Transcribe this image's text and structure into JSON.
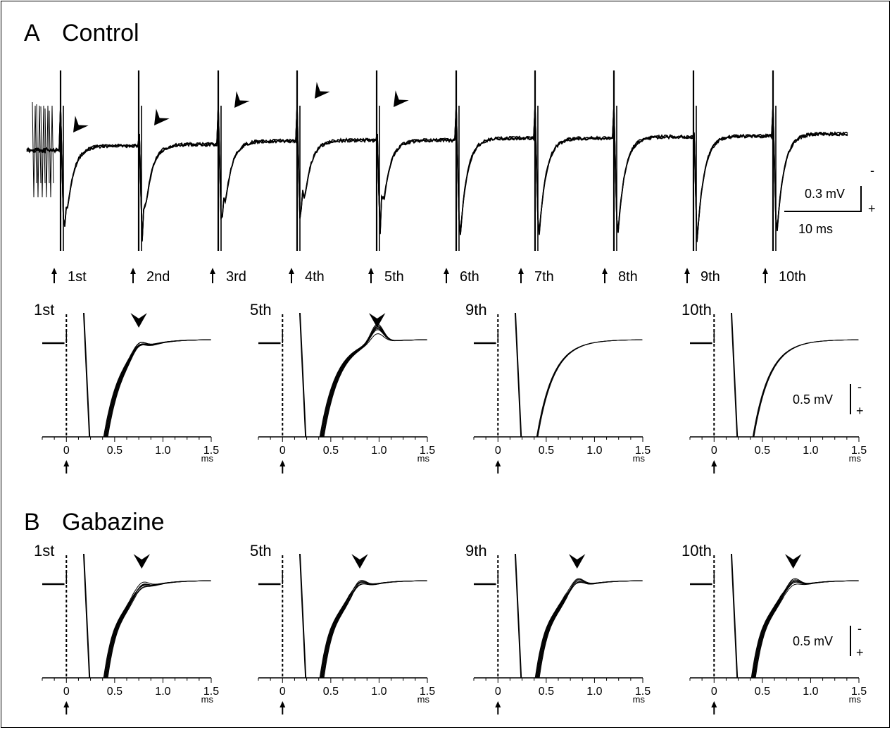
{
  "panel_a": {
    "letter": "A",
    "condition": "Control",
    "stimuli": [
      "1st",
      "2nd",
      "3rd",
      "4th",
      "5th",
      "6th",
      "7th",
      "8th",
      "9th",
      "10th"
    ],
    "scale_top": {
      "amplitude": "0.3 mV",
      "time": "10 ms",
      "minus": "-",
      "plus": "+"
    },
    "subpanels": [
      {
        "label": "1st",
        "arrowhead": true,
        "bump_ms": 0.75,
        "bump_mv": 0.08
      },
      {
        "label": "5th",
        "arrowhead": true,
        "bump_ms": 0.98,
        "bump_mv": 0.17
      },
      {
        "label": "9th",
        "arrowhead": false
      },
      {
        "label": "10th",
        "arrowhead": false
      }
    ],
    "scale_detail": {
      "amplitude": "0.5 mV",
      "minus": "-",
      "plus": "+"
    }
  },
  "panel_b": {
    "letter": "B",
    "condition": "Gabazine",
    "subpanels": [
      {
        "label": "1st",
        "arrowhead": true,
        "bump_ms": 0.78,
        "bump_mv": 0.08
      },
      {
        "label": "5th",
        "arrowhead": true,
        "bump_ms": 0.8,
        "bump_mv": 0.1
      },
      {
        "label": "9th",
        "arrowhead": true,
        "bump_ms": 0.82,
        "bump_mv": 0.1
      },
      {
        "label": "10th",
        "arrowhead": true,
        "bump_ms": 0.82,
        "bump_mv": 0.1
      }
    ],
    "scale_detail": {
      "amplitude": "0.5 mV",
      "minus": "-",
      "plus": "+"
    }
  },
  "axis": {
    "ticks": [
      "0",
      "0.5",
      "1.0",
      "1.5"
    ],
    "tick_values": [
      0,
      0.5,
      1.0,
      1.5
    ],
    "xmin": -0.25,
    "xmax": 1.5,
    "unit": "ms"
  }
}
